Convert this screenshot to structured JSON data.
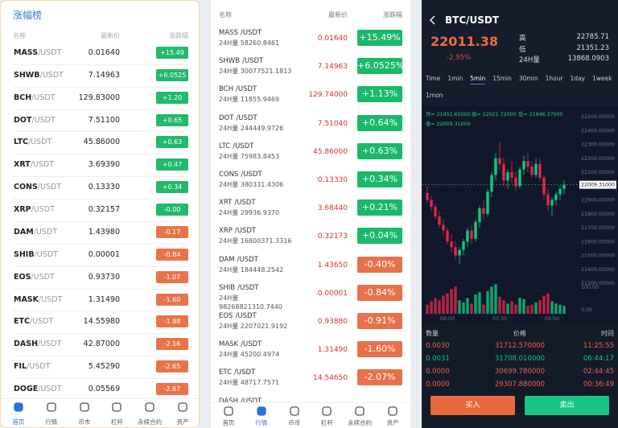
{
  "left": {
    "title": "涨幅榜",
    "header": [
      "名称",
      "最新价",
      "涨跌幅"
    ],
    "rows": [
      {
        "symbol": "MASS",
        "quote": "/USDT",
        "price": "0.01640",
        "change": "+15.49",
        "color": "#22b96d"
      },
      {
        "symbol": "SHWB",
        "quote": "/USDT",
        "price": "7.14963",
        "change": "+6.0525",
        "color": "#22b96d"
      },
      {
        "symbol": "BCH",
        "quote": "/USDT",
        "price": "129.83000",
        "change": "+1.20",
        "color": "#22b96d"
      },
      {
        "symbol": "DOT",
        "quote": "/USDT",
        "price": "7.51100",
        "change": "+0.65",
        "color": "#22b96d"
      },
      {
        "symbol": "LTC",
        "quote": "/USDT",
        "price": "45.86000",
        "change": "+0.63",
        "color": "#22b96d"
      },
      {
        "symbol": "XRT",
        "quote": "/USDT",
        "price": "3.69390",
        "change": "+0.47",
        "color": "#22b96d"
      },
      {
        "symbol": "CONS",
        "quote": "/USDT",
        "price": "0.13330",
        "change": "+0.34",
        "color": "#22b96d"
      },
      {
        "symbol": "XRP",
        "quote": "/USDT",
        "price": "0.32157",
        "change": "-0.00",
        "color": "#22b96d"
      },
      {
        "symbol": "DAM",
        "quote": "/USDT",
        "price": "1.43980",
        "change": "-0.17",
        "color": "#e8744a"
      },
      {
        "symbol": "SHIB",
        "quote": "/USDT",
        "price": "0.00001",
        "change": "-0.84",
        "color": "#e8744a"
      },
      {
        "symbol": "EOS",
        "quote": "/USDT",
        "price": "0.93730",
        "change": "-1.07",
        "color": "#e8744a"
      },
      {
        "symbol": "MASK",
        "quote": "/USDT",
        "price": "1.31490",
        "change": "-1.60",
        "color": "#e8744a"
      },
      {
        "symbol": "ETC",
        "quote": "/USDT",
        "price": "14.55980",
        "change": "-1.98",
        "color": "#e8744a"
      },
      {
        "symbol": "DASH",
        "quote": "/USDT",
        "price": "42.87000",
        "change": "-2.16",
        "color": "#e8744a"
      },
      {
        "symbol": "FIL",
        "quote": "/USDT",
        "price": "5.45290",
        "change": "-2.65",
        "color": "#e8744a"
      },
      {
        "symbol": "DOGE",
        "quote": "/USDT",
        "price": "0.05569",
        "change": "-2.67",
        "color": "#e8744a"
      }
    ],
    "nav": {
      "items": [
        "首页",
        "行情",
        "币市",
        "杠杆",
        "永续合约",
        "资产"
      ],
      "active": 0
    }
  },
  "middle": {
    "header": [
      "名称",
      "最新价",
      "涨跌幅"
    ],
    "volume_label": "24H量",
    "price_color": "#d9302f",
    "rows": [
      {
        "symbol": "MASS",
        "quote": "/USDT",
        "volume": "58260.8461",
        "price": "0.01640",
        "change": "+15.49%",
        "color": "#19b96a"
      },
      {
        "symbol": "SHWB",
        "quote": "/USDT",
        "volume": "30077521.1813",
        "price": "7.14963",
        "change": "+6.0525%",
        "color": "#19b96a"
      },
      {
        "symbol": "BCH",
        "quote": "/USDT",
        "volume": "11855.9469",
        "price": "129.74000",
        "change": "+1.13%",
        "color": "#19b96a"
      },
      {
        "symbol": "DOT",
        "quote": "/USDT",
        "volume": "244449.9726",
        "price": "7.51040",
        "change": "+0.64%",
        "color": "#19b96a"
      },
      {
        "symbol": "LTC",
        "quote": "/USDT",
        "volume": "75983.8453",
        "price": "45.86000",
        "change": "+0.63%",
        "color": "#19b96a"
      },
      {
        "symbol": "CONS",
        "quote": "/USDT",
        "volume": "380331.4306",
        "price": "0.13330",
        "change": "+0.34%",
        "color": "#19b96a"
      },
      {
        "symbol": "XRT",
        "quote": "/USDT",
        "volume": "29936.9370",
        "price": "3.68440",
        "change": "+0.21%",
        "color": "#19b96a"
      },
      {
        "symbol": "XRP",
        "quote": "/USDT",
        "volume": "16800371.3316",
        "price": "0.32173",
        "change": "+0.04%",
        "color": "#19b96a"
      },
      {
        "symbol": "DAM",
        "quote": "/USDT",
        "volume": "184448.2542",
        "price": "1.43650",
        "change": "-0.40%",
        "color": "#e8714b"
      },
      {
        "symbol": "SHIB",
        "quote": "/USDT",
        "volume": "98268821310.7440",
        "price": "0.00001",
        "change": "-0.84%",
        "color": "#e8714b"
      },
      {
        "symbol": "EOS",
        "quote": "/USDT",
        "volume": "2207021.9192",
        "price": "0.93880",
        "change": "-0.91%",
        "color": "#e8714b"
      },
      {
        "symbol": "MASK",
        "quote": "/USDT",
        "volume": "45200.4974",
        "price": "1.31490",
        "change": "-1.60%",
        "color": "#e8714b"
      },
      {
        "symbol": "ETC",
        "quote": "/USDT",
        "volume": "48717.7571",
        "price": "14.54650",
        "change": "-2.07%",
        "color": "#e8714b"
      },
      {
        "symbol": "DASH",
        "quote": "/USDT",
        "volume": "",
        "price": "",
        "change": "",
        "color": "#e8714b"
      }
    ],
    "nav": {
      "items": [
        "首页",
        "行情",
        "币币",
        "杠杆",
        "永续合约",
        "资产"
      ],
      "active": 1
    }
  },
  "right": {
    "pair": "BTC/USDT",
    "price": "22011.38",
    "change": "-2.95%",
    "stats": [
      {
        "label": "高",
        "value": "22785.71"
      },
      {
        "label": "低",
        "value": "21351.23"
      },
      {
        "label": "24H量",
        "value": "13868.0903"
      }
    ],
    "tabs": [
      "Time",
      "1min",
      "5min",
      "15min",
      "30min",
      "1hour",
      "1day",
      "1week",
      "1mon"
    ],
    "active_tab": 2,
    "indicators": [
      "开= 21951.65000",
      "高= 22021.72000",
      "低= 21946.37000",
      "收= 22009.31000"
    ],
    "trades": {
      "header": [
        "数量",
        "价格",
        "时间"
      ],
      "rows": [
        {
          "amount": "0.0030",
          "price": "31712.570000",
          "time": "11:25:55",
          "color": "#f0634a"
        },
        {
          "amount": "0.0031",
          "price": "31708.010000",
          "time": "06:44:17",
          "color": "#17c485"
        },
        {
          "amount": "0.0000",
          "price": "30699.780000",
          "time": "02:44:45",
          "color": "#f0634a"
        },
        {
          "amount": "0.0000",
          "price": "29307.880000",
          "time": "00:36:49",
          "color": "#f0634a"
        }
      ]
    },
    "buy": "买入",
    "sell": "卖出"
  },
  "chart_data": {
    "type": "candlestick",
    "categories": [
      null,
      null,
      null,
      null,
      null,
      "06:00",
      null,
      null,
      null,
      null,
      null,
      null,
      null,
      null,
      null,
      null,
      null,
      null,
      "07:30",
      null,
      null,
      null,
      null,
      null,
      null,
      null,
      null,
      null,
      null,
      null,
      null,
      "09:00",
      null,
      null,
      null
    ],
    "open": [
      21950,
      21900,
      21850,
      21780,
      21720,
      21680,
      21600,
      21560,
      21500,
      21540,
      21600,
      21680,
      21620,
      21740,
      21840,
      21800,
      21960,
      22080,
      22200,
      22160,
      22040,
      22100,
      22060,
      22000,
      22120,
      22180,
      22140,
      22080,
      22160,
      22060,
      21940,
      21860,
      21900,
      21940,
      21980
    ],
    "high": [
      22000,
      21930,
      21870,
      21820,
      21760,
      21700,
      21650,
      21600,
      21560,
      21620,
      21700,
      21720,
      21760,
      21860,
      21900,
      21980,
      22100,
      22240,
      22320,
      22200,
      22120,
      22180,
      22100,
      22140,
      22220,
      22240,
      22180,
      22200,
      22200,
      22080,
      21980,
      21920,
      21960,
      22000,
      22040
    ],
    "low": [
      21880,
      21820,
      21760,
      21700,
      21640,
      21580,
      21520,
      21470,
      21440,
      21500,
      21560,
      21580,
      21600,
      21700,
      21760,
      21780,
      21920,
      22040,
      22120,
      22000,
      21980,
      22020,
      21960,
      21980,
      22080,
      22100,
      22060,
      22060,
      22040,
      21900,
      21820,
      21780,
      21860,
      21900,
      21940
    ],
    "close": [
      21900,
      21850,
      21780,
      21720,
      21680,
      21600,
      21560,
      21500,
      21540,
      21600,
      21680,
      21620,
      21740,
      21840,
      21800,
      21960,
      22080,
      22200,
      22160,
      22040,
      22100,
      22060,
      22000,
      22120,
      22180,
      22140,
      22080,
      22160,
      22060,
      21940,
      21860,
      21900,
      21940,
      21980,
      22009.31
    ],
    "volume": [
      40,
      55,
      70,
      60,
      80,
      90,
      110,
      120,
      60,
      50,
      70,
      45,
      85,
      95,
      40,
      100,
      120,
      130,
      75,
      60,
      45,
      55,
      40,
      70,
      65,
      35,
      40,
      50,
      60,
      80,
      90,
      55,
      45,
      40,
      35
    ],
    "ylim": [
      21300,
      22500
    ],
    "yticks": [
      {
        "value": 21300,
        "label": "21300.00000"
      },
      {
        "value": 21400,
        "label": "21400.00000"
      },
      {
        "value": 21500,
        "label": "21500.00000"
      },
      {
        "value": 21600,
        "label": "21600.00000"
      },
      {
        "value": 21700,
        "label": "21700.00000"
      },
      {
        "value": 21800,
        "label": "21800.00000"
      },
      {
        "value": 21900,
        "label": "21900.00000"
      },
      {
        "value": 22000,
        "label": "22000.00000"
      },
      {
        "value": 22100,
        "label": "22100.00000"
      },
      {
        "value": 22200,
        "label": "22200.00000"
      },
      {
        "value": 22300,
        "label": "22300.00000"
      },
      {
        "value": 22400,
        "label": "22400.00000"
      },
      {
        "value": 22500,
        "label": "22500.00000"
      }
    ],
    "vlim": [
      0,
      135
    ],
    "vticks": [
      {
        "value": 100,
        "label": "100.00"
      },
      {
        "value": 0,
        "label": "0.00"
      }
    ],
    "up_color": "#0ecb81",
    "down_color": "#e0294a",
    "last_price": {
      "value": 22009.31,
      "label": "22009.31000"
    }
  }
}
